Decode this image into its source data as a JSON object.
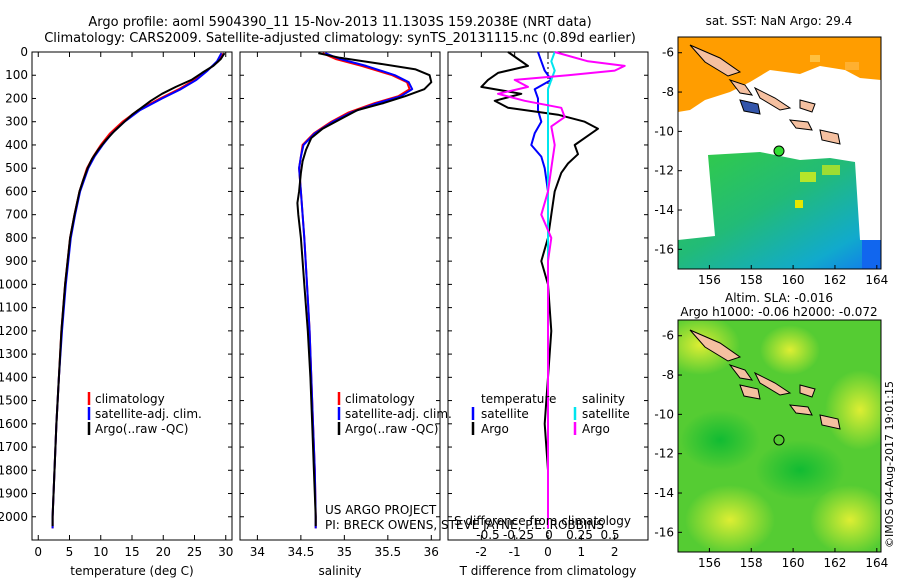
{
  "header": {
    "title_line1": "Argo profile: aoml 5904390_11 15-Nov-2013 11.1303S 159.2038E (NRT data)",
    "title_line2": "Climatology: CARS2009. Satellite-adjusted climatology: synTS_20131115.nc (0.89d earlier)"
  },
  "colors": {
    "climatology": "#ff0000",
    "satellite": "#0000ff",
    "argo": "#000000",
    "sat_salinity": "#00e5ee",
    "argo_salinity": "#ff00ff"
  },
  "legend": {
    "climatology": "climatology",
    "satellite": "satellite-adj. clim.",
    "argo": "Argo(..raw -QC)",
    "temperature": "temperature",
    "salinity": "salinity",
    "satellite_short": "satellite",
    "argo_short": "Argo"
  },
  "credits": {
    "line1": "US ARGO PROJECT",
    "line2": "PI: BRECK OWENS, STEVE JAYNE, P.E. ROBBINS",
    "side": "©IMOS 04-Aug-2017 19:01:15"
  },
  "chart_data": [
    {
      "type": "line",
      "xlabel": "temperature (deg C)",
      "ylabel": "",
      "xlim": [
        -1,
        31
      ],
      "ylim": [
        2100,
        0
      ],
      "xticks": [
        0,
        5,
        10,
        15,
        20,
        25,
        30
      ],
      "yticks": [
        0,
        100,
        200,
        300,
        400,
        500,
        600,
        700,
        800,
        900,
        1000,
        1100,
        1200,
        1300,
        1400,
        1500,
        1600,
        1700,
        1800,
        1900,
        2000
      ],
      "series": [
        {
          "name": "climatology",
          "color": "#ff0000",
          "depth": [
            5,
            40,
            80,
            120,
            160,
            200,
            250,
            300,
            350,
            400,
            450,
            500,
            600,
            700,
            800,
            1000,
            1200,
            1400,
            1600,
            1800,
            2000,
            2050
          ],
          "values": [
            29.5,
            28.8,
            27.0,
            25.0,
            22.5,
            19.5,
            16.0,
            13.5,
            11.5,
            10.0,
            8.8,
            7.8,
            6.6,
            5.8,
            5.1,
            4.3,
            3.7,
            3.3,
            2.9,
            2.6,
            2.3,
            2.3
          ]
        },
        {
          "name": "satellite-adj. clim.",
          "color": "#0000ff",
          "depth": [
            5,
            40,
            80,
            120,
            160,
            200,
            250,
            300,
            350,
            400,
            450,
            500,
            600,
            700,
            800,
            1000,
            1200,
            1400,
            1600,
            1800,
            2000,
            2050
          ],
          "values": [
            29.3,
            28.6,
            27.1,
            25.3,
            22.8,
            19.8,
            16.3,
            13.8,
            11.8,
            10.3,
            9.0,
            8.0,
            6.7,
            5.9,
            5.2,
            4.4,
            3.8,
            3.3,
            2.9,
            2.6,
            2.3,
            2.3
          ]
        },
        {
          "name": "Argo",
          "color": "#000000",
          "depth": [
            5,
            30,
            60,
            90,
            120,
            150,
            180,
            210,
            240,
            270,
            300,
            340,
            380,
            420,
            460,
            500,
            550,
            600,
            700,
            800,
            1000,
            1200,
            1400,
            1600,
            1800,
            2000,
            2040
          ],
          "values": [
            29.8,
            29.2,
            28.0,
            26.2,
            24.5,
            22.0,
            19.8,
            18.0,
            16.5,
            15.0,
            13.8,
            12.2,
            10.8,
            9.6,
            8.6,
            7.9,
            7.2,
            6.6,
            5.8,
            5.1,
            4.3,
            3.7,
            3.3,
            2.9,
            2.6,
            2.3,
            2.3
          ]
        }
      ]
    },
    {
      "type": "line",
      "xlabel": "salinity",
      "ylabel": "",
      "xlim": [
        33.8,
        36.1
      ],
      "ylim": [
        2100,
        0
      ],
      "xticks": [
        34,
        34.5,
        35,
        35.5,
        36
      ],
      "series": [
        {
          "name": "climatology",
          "color": "#ff0000",
          "depth": [
            5,
            30,
            60,
            100,
            130,
            160,
            190,
            220,
            260,
            300,
            350,
            400,
            450,
            500,
            600,
            700,
            800,
            1000,
            1200,
            1400,
            1600,
            1800,
            2000,
            2050
          ],
          "values": [
            34.75,
            34.9,
            35.2,
            35.55,
            35.72,
            35.75,
            35.62,
            35.35,
            35.05,
            34.85,
            34.65,
            34.52,
            34.5,
            34.48,
            34.5,
            34.52,
            34.54,
            34.57,
            34.6,
            34.62,
            34.64,
            34.66,
            34.67,
            34.67
          ]
        },
        {
          "name": "satellite-adj. clim.",
          "color": "#0000ff",
          "depth": [
            5,
            30,
            60,
            100,
            130,
            160,
            190,
            220,
            260,
            300,
            350,
            400,
            450,
            500,
            600,
            700,
            800,
            1000,
            1200,
            1400,
            1600,
            1800,
            2000,
            2050
          ],
          "values": [
            34.78,
            34.95,
            35.25,
            35.58,
            35.74,
            35.78,
            35.65,
            35.38,
            35.08,
            34.87,
            34.66,
            34.53,
            34.5,
            34.48,
            34.5,
            34.52,
            34.54,
            34.57,
            34.6,
            34.62,
            34.64,
            34.66,
            34.67,
            34.67
          ]
        },
        {
          "name": "Argo",
          "color": "#000000",
          "depth": [
            5,
            25,
            50,
            75,
            100,
            130,
            160,
            190,
            220,
            250,
            290,
            330,
            370,
            420,
            470,
            520,
            560,
            600,
            650,
            700,
            800,
            1000,
            1200,
            1400,
            1600,
            1800,
            2000,
            2040
          ],
          "values": [
            34.7,
            34.95,
            35.4,
            35.82,
            35.98,
            36.0,
            35.92,
            35.7,
            35.45,
            35.15,
            34.95,
            34.75,
            34.62,
            34.56,
            34.52,
            34.5,
            34.49,
            34.48,
            34.46,
            34.47,
            34.5,
            34.54,
            34.58,
            34.61,
            34.63,
            34.65,
            34.67,
            34.67
          ]
        }
      ]
    },
    {
      "type": "line",
      "xlabel": "T difference from climatology",
      "title": "S difference from climatology",
      "xlim": [
        -3,
        3
      ],
      "ylim": [
        2100,
        0
      ],
      "xticks": [
        -2,
        -1,
        0,
        1,
        2
      ],
      "top_xticks": [
        "-0.5",
        "-0.25",
        "0",
        "0.25",
        "0.5"
      ],
      "series": [
        {
          "name": "satellite temperature",
          "color": "#0000ff",
          "depth": [
            0,
            40,
            80,
            120,
            160,
            200,
            250,
            300,
            350,
            400,
            450,
            500,
            600,
            700,
            800,
            1000,
            1400,
            1800,
            2050
          ],
          "values": [
            -0.3,
            -0.2,
            -0.1,
            0.1,
            -0.4,
            -0.3,
            -0.3,
            -0.2,
            -0.4,
            -0.5,
            -0.2,
            -0.1,
            0.0,
            0.0,
            0.0,
            0.0,
            0.0,
            0.0,
            0.0
          ]
        },
        {
          "name": "Argo temperature",
          "color": "#000000",
          "depth": [
            0,
            30,
            60,
            90,
            120,
            150,
            180,
            210,
            240,
            270,
            300,
            330,
            360,
            400,
            440,
            480,
            520,
            560,
            600,
            700,
            800,
            900,
            1000,
            1200,
            1400,
            1600,
            1800,
            2000,
            2040
          ],
          "values": [
            -1.2,
            -0.9,
            -0.6,
            -1.5,
            -1.8,
            -2.0,
            -0.8,
            -1.6,
            -1.2,
            0.3,
            1.1,
            1.5,
            1.2,
            0.8,
            0.9,
            0.6,
            0.4,
            0.3,
            0.2,
            0.1,
            0.0,
            -0.2,
            0.0,
            0.1,
            0.0,
            -0.1,
            0.0,
            0.0,
            0.0
          ]
        },
        {
          "name": "satellite salinity",
          "color": "#00e5ee",
          "depth": [
            0,
            40,
            80,
            120,
            160,
            200,
            300,
            400,
            500,
            700,
            900,
            1200,
            1500,
            1800,
            2050
          ],
          "values": [
            0.2,
            0.1,
            0.2,
            0.1,
            0.0,
            0.0,
            0.0,
            0.0,
            0.0,
            0.0,
            0.0,
            0.0,
            0.0,
            0.0,
            0.0
          ]
        },
        {
          "name": "Argo salinity",
          "color": "#ff00ff",
          "depth": [
            0,
            40,
            60,
            80,
            100,
            120,
            150,
            180,
            210,
            240,
            280,
            320,
            400,
            500,
            600,
            700,
            800,
            900,
            1000,
            1200,
            1500,
            1800,
            2050
          ],
          "values": [
            0.2,
            1.2,
            2.3,
            2.0,
            0.6,
            -1.0,
            -0.6,
            -1.5,
            -0.7,
            0.4,
            0.5,
            0.1,
            0.2,
            0.1,
            0.0,
            -0.2,
            0.1,
            0.0,
            0.0,
            0.0,
            0.0,
            0.0,
            0.0
          ]
        }
      ]
    },
    {
      "type": "heatmap",
      "title": "sat. SST: NaN Argo: 29.4",
      "xlim": [
        154.5,
        164.2
      ],
      "ylim": [
        -17,
        -5.2
      ],
      "xticks": [
        156,
        158,
        160,
        162,
        164
      ],
      "yticks": [
        -6,
        -8,
        -10,
        -12,
        -14,
        -16
      ],
      "float_position": [
        159.2038,
        -11.1303
      ]
    },
    {
      "type": "heatmap",
      "title": "Altim. SLA: -0.016",
      "subtitle": "Argo h1000: -0.06 h2000: -0.072",
      "xlim": [
        154.5,
        164.2
      ],
      "ylim": [
        -17,
        -5.2
      ],
      "xticks": [
        156,
        158,
        160,
        162,
        164
      ],
      "yticks": [
        -6,
        -8,
        -10,
        -12,
        -14,
        -16
      ],
      "float_position": [
        159.2038,
        -11.1303
      ]
    }
  ]
}
